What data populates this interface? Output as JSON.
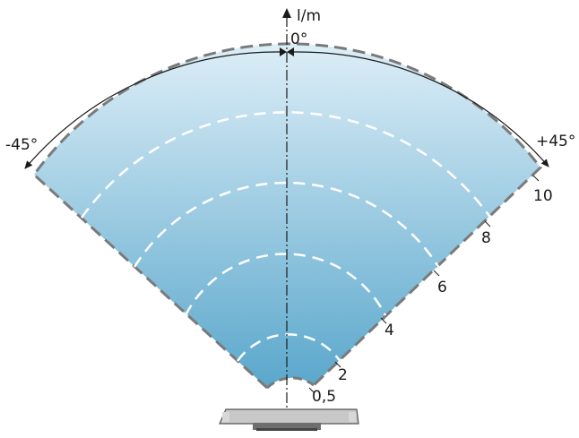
{
  "axis_label": "l/m",
  "center_angle_label": "0°",
  "left_angle_label": "-45°",
  "right_angle_label": "+45°",
  "range_labels": [
    "10",
    "8",
    "6",
    "4",
    "2",
    "0,5"
  ],
  "colors": {
    "gradient_top": "#ddeef7",
    "gradient_bottom": "#5aa7cc",
    "outline": "#7a7a7a",
    "inner_arcs": "#ffffff",
    "axis": "#1a1a1a",
    "device_face": "#c8c8c8",
    "device_base": "#6e6e6e"
  },
  "icon": "sensor-device-icon"
}
